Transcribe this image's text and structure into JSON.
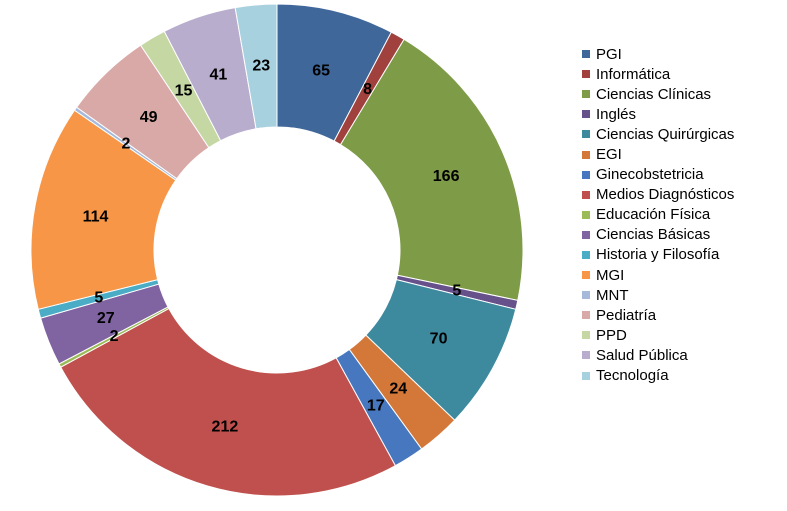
{
  "chart_data": {
    "type": "pie",
    "subtype": "doughnut",
    "title": "",
    "legend_position": "right",
    "series": [
      {
        "categories": [
          "PGI",
          "Informática",
          "Ciencias Clínicas",
          "Inglés",
          "Ciencias Quirúrgicas",
          "EGI",
          "Ginecobstetricia",
          "Medios Diagnósticos",
          "Educación Física",
          "Ciencias Básicas",
          "Historia y Filosofía",
          "MGI",
          "MNT",
          "Pediatría",
          "PPD",
          "Salud Pública",
          "Tecnología"
        ],
        "values": [
          65,
          8,
          166,
          5,
          70,
          24,
          17,
          212,
          2,
          27,
          5,
          114,
          2,
          49,
          15,
          41,
          23
        ],
        "colors": [
          "#3f679a",
          "#a0413e",
          "#7e9b47",
          "#66518a",
          "#3d8a9e",
          "#d4783a",
          "#4778bf",
          "#c0504d",
          "#9bbb59",
          "#8064a2",
          "#4bacc6",
          "#f79646",
          "#a6b9db",
          "#d9a9a7",
          "#c5d8a4",
          "#b8adcd",
          "#a8d1df"
        ]
      }
    ]
  }
}
